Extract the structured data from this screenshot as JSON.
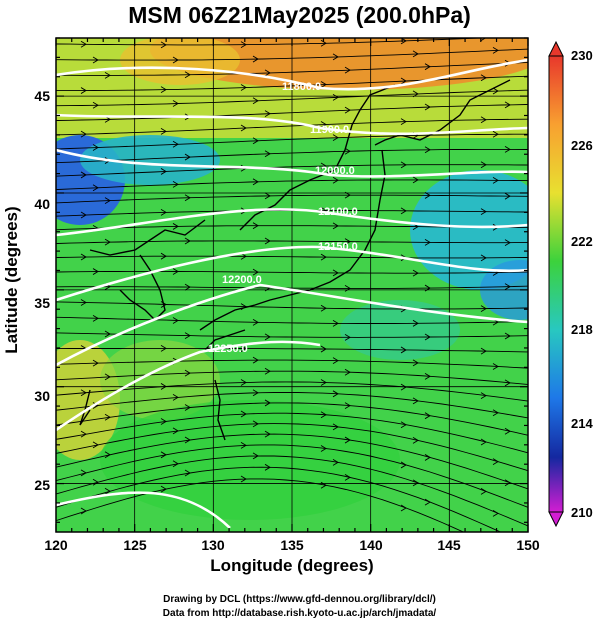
{
  "title": "MSM 06Z21May2025 (200.0hPa)",
  "xlabel": "Longitude (degrees)",
  "ylabel": "Latitude  (degrees)",
  "x_ticks": [
    "120",
    "125",
    "130",
    "135",
    "140",
    "145",
    "150"
  ],
  "y_ticks": [
    "25",
    "30",
    "35",
    "40",
    "45"
  ],
  "colorbar": {
    "ticks": [
      "230",
      "226",
      "222",
      "218",
      "214",
      "210"
    ],
    "colors": [
      "#e8382c",
      "#f8a030",
      "#e8e030",
      "#3cd23c",
      "#28c8c0",
      "#1e78e8",
      "#1428a0",
      "#d21ed2"
    ]
  },
  "contours": [
    "11800.0",
    "11900.0",
    "12000.0",
    "12100.0",
    "12150.0",
    "12200.0",
    "12250.0"
  ],
  "credits": {
    "line1": "Drawing by DCL (https://www.gfd-dennou.org/library/dcl/)",
    "line2": "Data from http://database.rish.kyoto-u.ac.jp/arch/jmadata/"
  }
}
